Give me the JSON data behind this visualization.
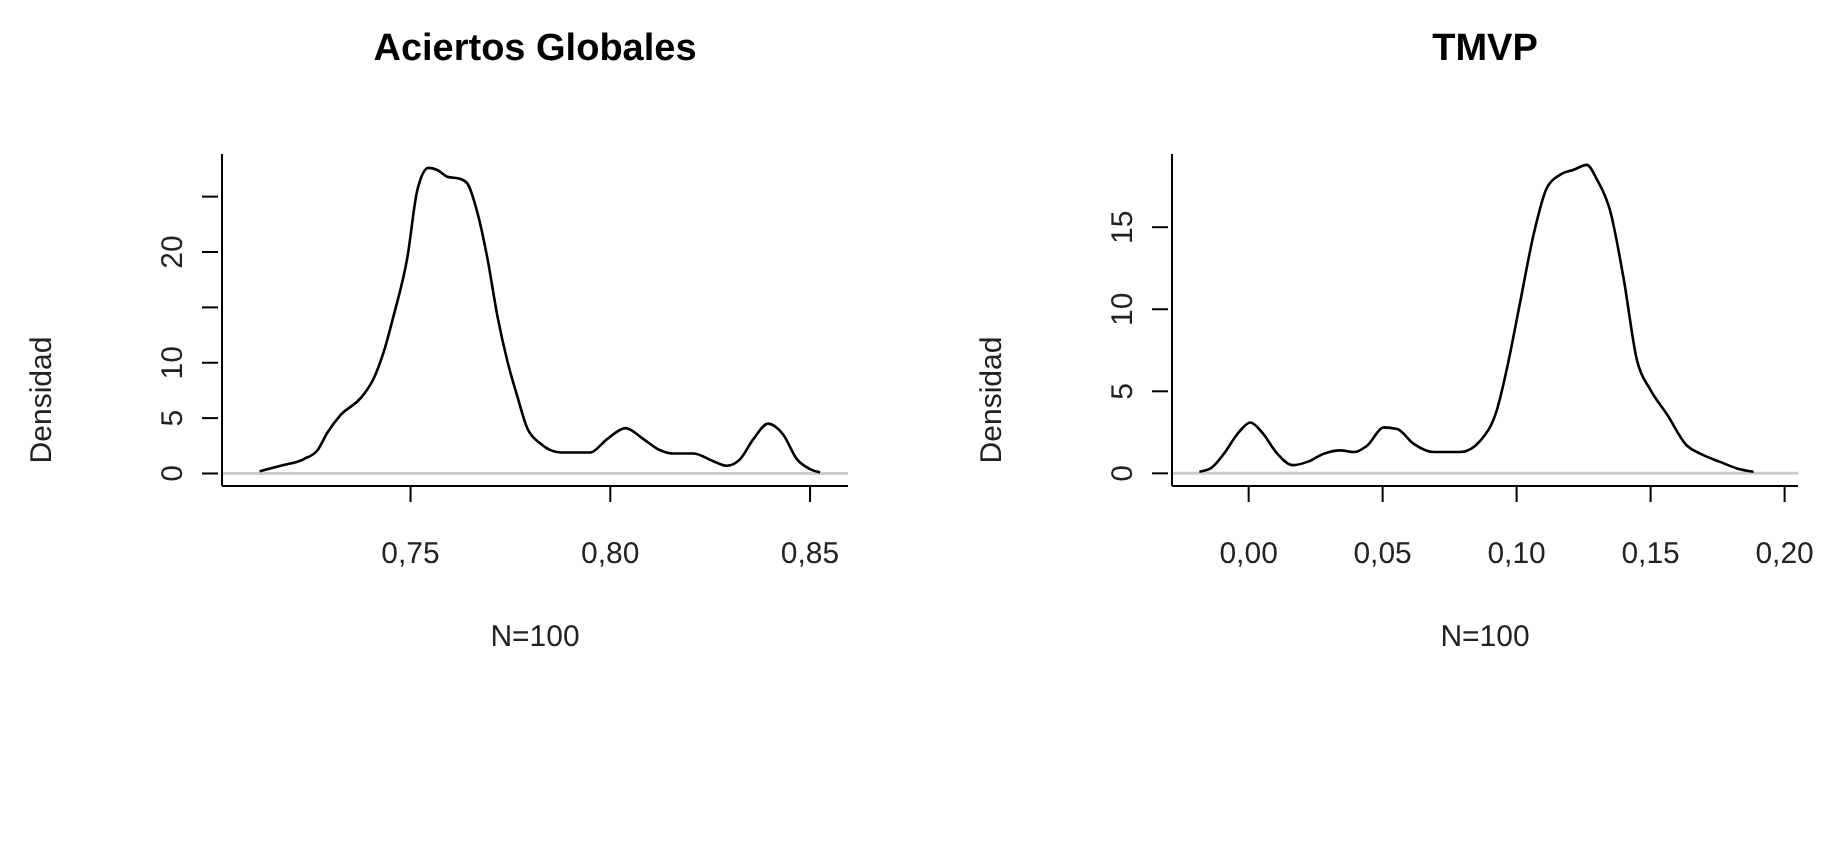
{
  "chart_data": [
    {
      "type": "line",
      "title": "Aciertos Globales",
      "xlabel": "N=100",
      "ylabel": "Densidad",
      "xlim": [
        0.7028,
        0.8595
      ],
      "ylim": [
        -1.13,
        28.85
      ],
      "xticks": [
        {
          "value": 0.75,
          "label": "0,75"
        },
        {
          "value": 0.8,
          "label": "0,80"
        },
        {
          "value": 0.85,
          "label": "0,85"
        }
      ],
      "yticks": [
        0,
        5,
        10,
        {
          "value": 15,
          "label": null
        },
        20,
        {
          "value": 25,
          "label": null
        }
      ],
      "grid": false,
      "legend": false,
      "marker": "none",
      "line_style": "solid",
      "ref_lines": [
        {
          "axis": "y",
          "value": 0,
          "color": "#cccccc"
        }
      ],
      "series": [
        {
          "color": "#000000",
          "x": [
            0.7122,
            0.7175,
            0.7233,
            0.7267,
            0.7292,
            0.7325,
            0.7375,
            0.7408,
            0.7433,
            0.7458,
            0.7492,
            0.7517,
            0.7545,
            0.7567,
            0.7592,
            0.7625,
            0.7642,
            0.7667,
            0.7692,
            0.7717,
            0.7742,
            0.7767,
            0.7792,
            0.7825,
            0.7875,
            0.795,
            0.7992,
            0.8038,
            0.8083,
            0.8125,
            0.8158,
            0.8208,
            0.8258,
            0.8292,
            0.8325,
            0.8358,
            0.8395,
            0.8433,
            0.8467,
            0.85,
            0.8525
          ],
          "values": [
            0.2,
            0.7,
            1.3,
            2.1,
            3.7,
            5.3,
            6.8,
            8.6,
            11.0,
            14.3,
            19.5,
            25.6,
            27.6,
            27.4,
            26.8,
            26.6,
            26.2,
            23.6,
            19.5,
            14.3,
            10.2,
            7.0,
            4.1,
            2.7,
            1.9,
            1.9,
            3.1,
            4.1,
            3.1,
            2.1,
            1.8,
            1.8,
            1.1,
            0.7,
            1.3,
            3.1,
            4.5,
            3.5,
            1.3,
            0.4,
            0.1
          ]
        }
      ]
    },
    {
      "type": "line",
      "title": "TMVP",
      "xlabel": "N=100",
      "ylabel": "Densidad",
      "xlim": [
        -0.0286,
        0.205
      ],
      "ylim": [
        -0.77,
        19.46
      ],
      "xticks": [
        {
          "value": 0,
          "label": "0,00"
        },
        {
          "value": 0.05,
          "label": "0,05"
        },
        {
          "value": 0.1,
          "label": "0,10"
        },
        {
          "value": 0.15,
          "label": "0,15"
        },
        {
          "value": 0.2,
          "label": "0,20"
        }
      ],
      "yticks": [
        0,
        5,
        10,
        15
      ],
      "grid": false,
      "legend": false,
      "marker": "none",
      "line_style": "solid",
      "ref_lines": [
        {
          "axis": "y",
          "value": 0,
          "color": "#cccccc"
        }
      ],
      "series": [
        {
          "color": "#000000",
          "x": [
            -0.0184,
            -0.0142,
            -0.0092,
            -0.0042,
            0.0007,
            0.005,
            0.0107,
            0.0164,
            0.0219,
            0.0281,
            0.0343,
            0.0393,
            0.0443,
            0.0504,
            0.0554,
            0.0616,
            0.0691,
            0.079,
            0.0865,
            0.0927,
            0.0964,
            0.1014,
            0.1064,
            0.1113,
            0.1163,
            0.1213,
            0.1262,
            0.13,
            0.1349,
            0.1399,
            0.1449,
            0.1499,
            0.1561,
            0.1635,
            0.1685,
            0.1759,
            0.1822,
            0.1884
          ],
          "values": [
            0.1,
            0.3,
            1.2,
            2.4,
            3.1,
            2.5,
            1.2,
            0.5,
            0.7,
            1.2,
            1.4,
            1.3,
            1.7,
            2.8,
            2.7,
            1.8,
            1.3,
            1.3,
            2.0,
            3.9,
            6.4,
            10.5,
            14.6,
            17.4,
            18.2,
            18.5,
            18.8,
            17.9,
            16.0,
            11.9,
            6.9,
            5.1,
            3.6,
            1.7,
            1.2,
            0.7,
            0.3,
            0.1
          ]
        }
      ]
    }
  ]
}
